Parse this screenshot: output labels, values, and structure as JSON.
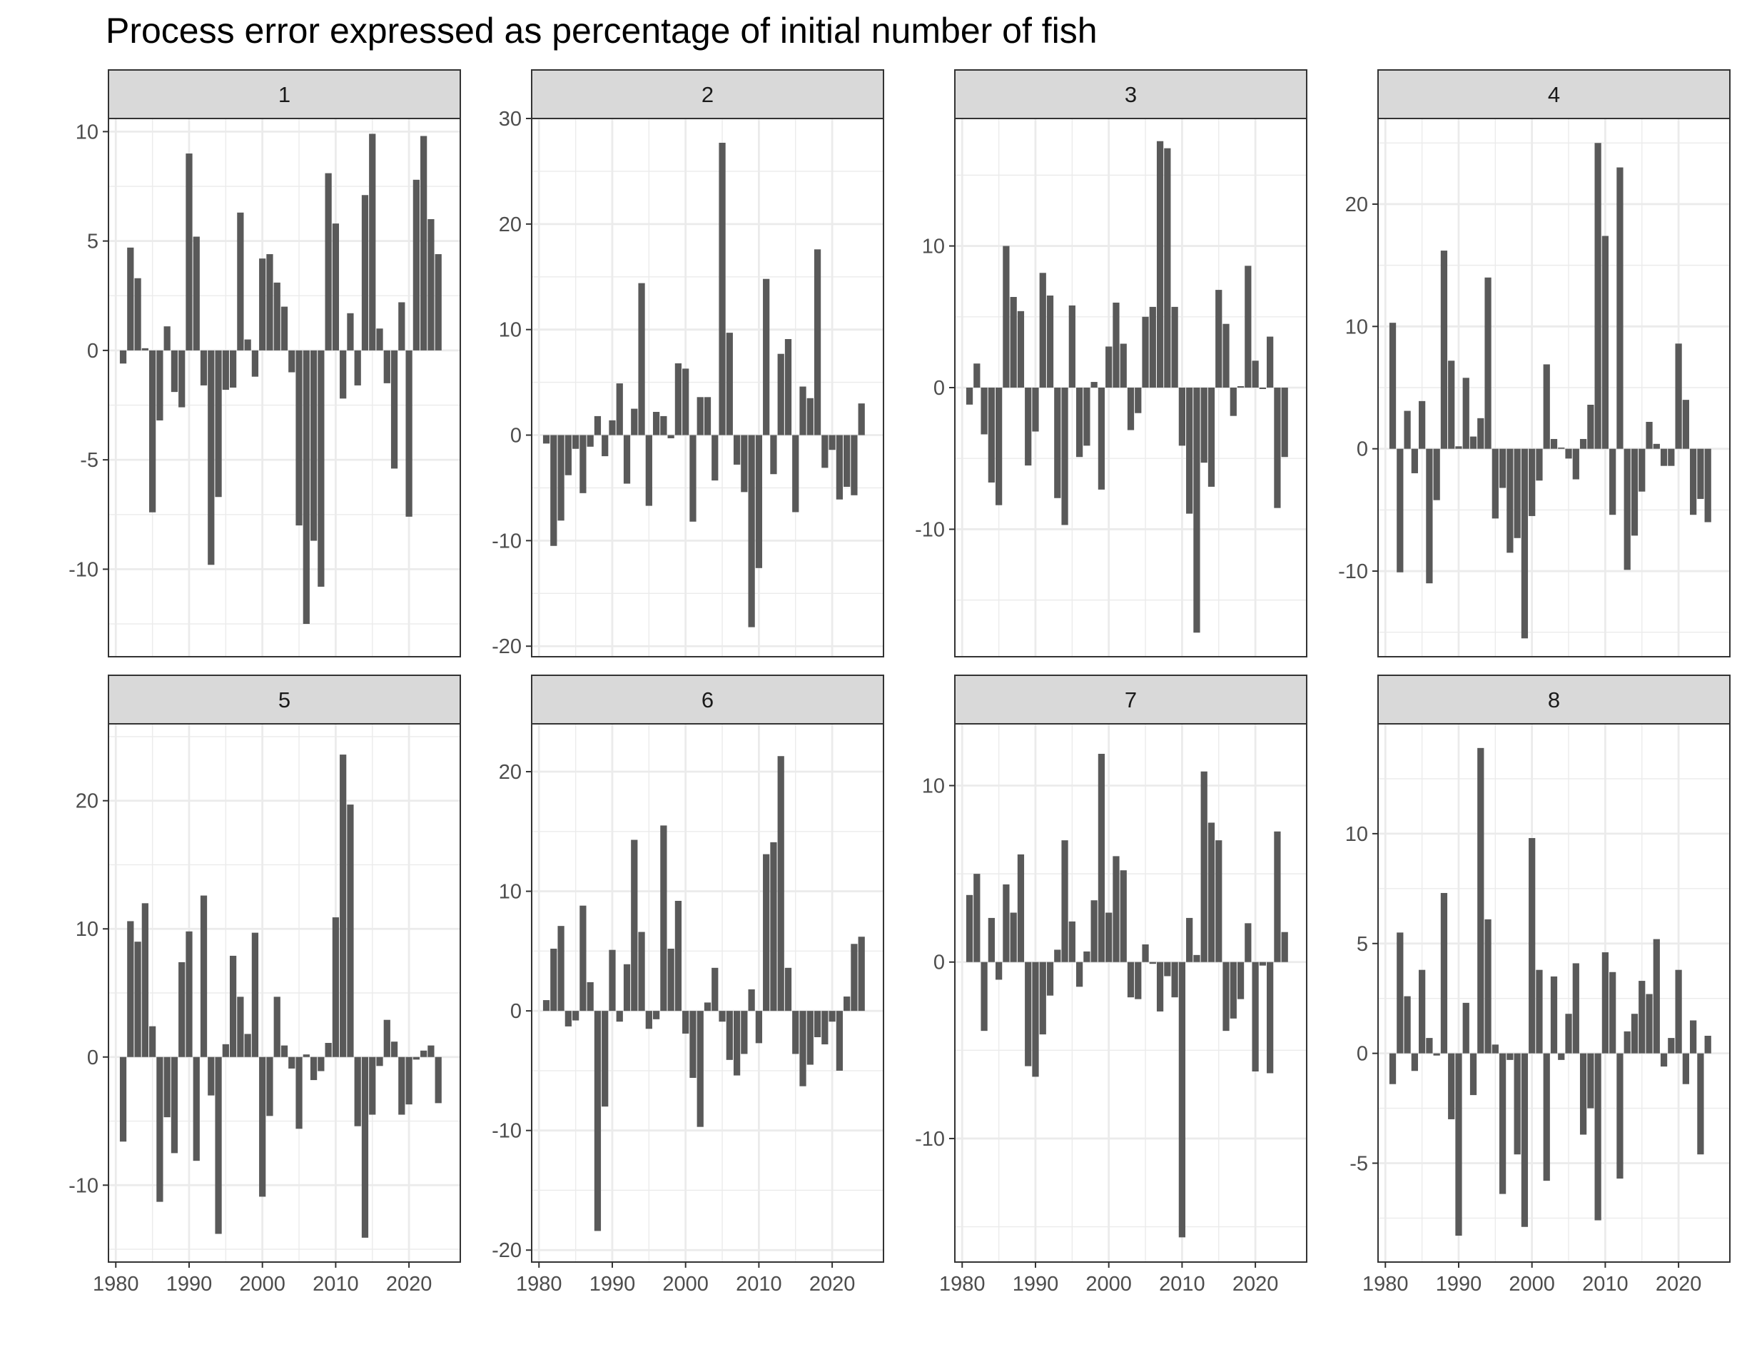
{
  "chart_data": {
    "type": "bar",
    "title": "Process error expressed as percentage of initial number of fish",
    "xlabel": "",
    "ylabel": "",
    "layout": "facet-grid-2x4",
    "grid": true,
    "bar_color": "#595959",
    "strip_fill": "#d9d9d9",
    "grid_color": "#ebebeb",
    "x_start": 1981,
    "x_ticks": [
      1980,
      1990,
      2000,
      2010,
      2020
    ],
    "xlim": [
      1979,
      2027
    ],
    "panels": [
      {
        "label": "1",
        "ylim": [
          -14,
          10.6
        ],
        "y_ticks": [
          -10,
          -5,
          0,
          5,
          10
        ],
        "values": [
          -0.6,
          4.7,
          3.3,
          0.1,
          -7.4,
          -3.2,
          1.1,
          -1.9,
          -2.6,
          9.0,
          5.2,
          -1.6,
          -9.8,
          -6.7,
          -1.8,
          -1.7,
          6.3,
          0.5,
          -1.2,
          4.2,
          4.4,
          3.1,
          2.0,
          -1.0,
          -8.0,
          -12.5,
          -8.7,
          -10.8,
          8.1,
          5.8,
          -2.2,
          1.7,
          -1.6,
          7.1,
          9.9,
          1.0,
          -1.5,
          -5.4,
          2.2,
          -7.6,
          7.8,
          9.8,
          6.0,
          4.4
        ]
      },
      {
        "label": "2",
        "ylim": [
          -21,
          30
        ],
        "y_ticks": [
          -20,
          -10,
          0,
          10,
          20,
          30
        ],
        "values": [
          -0.8,
          -10.5,
          -8.1,
          -3.8,
          -1.3,
          -5.5,
          -1.1,
          1.8,
          -2.0,
          1.4,
          4.9,
          -4.6,
          2.5,
          14.4,
          -6.7,
          2.2,
          1.8,
          -0.3,
          6.8,
          6.3,
          -8.2,
          3.6,
          3.6,
          -4.3,
          27.7,
          9.7,
          -2.8,
          -5.4,
          -18.2,
          -12.6,
          14.8,
          -3.7,
          7.7,
          9.1,
          -7.3,
          4.6,
          3.5,
          17.6,
          -3.1,
          -1.4,
          -6.1,
          -4.9,
          -5.7,
          3.0
        ]
      },
      {
        "label": "3",
        "ylim": [
          -19,
          19
        ],
        "y_ticks": [
          -10,
          0,
          10
        ],
        "values": [
          -1.2,
          1.7,
          -3.3,
          -6.7,
          -8.3,
          10.0,
          6.4,
          5.4,
          -5.5,
          -3.1,
          8.1,
          6.5,
          -7.8,
          -9.7,
          5.8,
          -4.9,
          -4.1,
          0.4,
          -7.2,
          2.9,
          6.0,
          3.1,
          -3.0,
          -1.8,
          5.0,
          5.7,
          17.4,
          16.9,
          5.7,
          -4.1,
          -8.9,
          -17.3,
          -5.3,
          -7.0,
          6.9,
          4.5,
          -2.0,
          0.1,
          8.6,
          1.9,
          -0.1,
          3.6,
          -8.5,
          -4.9
        ]
      },
      {
        "label": "4",
        "ylim": [
          -17,
          27
        ],
        "y_ticks": [
          -10,
          0,
          10,
          20
        ],
        "values": [
          10.3,
          -10.1,
          3.1,
          -2.0,
          3.9,
          -11.0,
          -4.2,
          16.2,
          7.2,
          0.2,
          5.8,
          1.0,
          2.5,
          14.0,
          -5.7,
          -3.2,
          -8.5,
          -7.3,
          -15.5,
          -5.5,
          -2.6,
          6.9,
          0.8,
          0.1,
          -0.8,
          -2.5,
          0.8,
          3.6,
          25.0,
          17.4,
          -5.4,
          23.0,
          -9.9,
          -7.1,
          -3.5,
          2.2,
          0.4,
          -1.4,
          -1.4,
          8.6,
          4.0,
          -5.4,
          -4.1,
          -6.0
        ]
      },
      {
        "label": "5",
        "ylim": [
          -16,
          26
        ],
        "y_ticks": [
          -10,
          0,
          10,
          20
        ],
        "values": [
          -6.6,
          10.6,
          9.0,
          12.0,
          2.4,
          -11.3,
          -4.7,
          -7.5,
          7.4,
          9.8,
          -8.1,
          12.6,
          -3.0,
          -13.8,
          1.0,
          7.9,
          4.7,
          1.8,
          9.7,
          -10.9,
          -4.6,
          4.7,
          0.9,
          -0.9,
          -5.6,
          0.2,
          -1.8,
          -1.1,
          1.1,
          10.9,
          23.6,
          19.7,
          -5.4,
          -14.1,
          -4.5,
          -0.7,
          2.9,
          1.2,
          -4.5,
          -3.7,
          -0.2,
          0.5,
          0.9,
          -3.6
        ]
      },
      {
        "label": "6",
        "ylim": [
          -21,
          24
        ],
        "y_ticks": [
          -20,
          -10,
          0,
          10,
          20
        ],
        "values": [
          0.9,
          5.2,
          7.1,
          -1.3,
          -0.8,
          8.8,
          2.4,
          -18.4,
          -8.0,
          5.1,
          -0.9,
          3.9,
          14.3,
          6.6,
          -1.5,
          -0.7,
          15.5,
          5.2,
          9.2,
          -1.9,
          -5.6,
          -9.7,
          0.7,
          3.6,
          -0.9,
          -4.1,
          -5.4,
          -3.6,
          1.8,
          -2.7,
          13.1,
          14.1,
          21.3,
          3.6,
          -3.6,
          -6.3,
          -4.5,
          -2.2,
          -2.8,
          -0.9,
          -5.0,
          1.2,
          5.6,
          6.2
        ]
      },
      {
        "label": "7",
        "ylim": [
          -17,
          13.5
        ],
        "y_ticks": [
          -10,
          0,
          10
        ],
        "values": [
          3.8,
          5.0,
          -3.9,
          2.5,
          -1.0,
          4.4,
          2.8,
          6.1,
          -5.9,
          -6.5,
          -4.1,
          -1.9,
          0.7,
          6.9,
          2.3,
          -1.4,
          0.6,
          3.5,
          11.8,
          2.8,
          6.0,
          5.2,
          -2.0,
          -2.1,
          1.0,
          -0.1,
          -2.8,
          -0.8,
          -2.0,
          -15.6,
          2.5,
          0.4,
          10.8,
          7.9,
          6.9,
          -3.9,
          -3.2,
          -2.1,
          2.2,
          -6.2,
          -0.2,
          -6.3,
          7.4,
          1.7
        ]
      },
      {
        "label": "8",
        "ylim": [
          -9.5,
          15
        ],
        "y_ticks": [
          -5,
          0,
          5,
          10
        ],
        "values": [
          -1.4,
          5.5,
          2.6,
          -0.8,
          3.8,
          0.7,
          -0.1,
          7.3,
          -3.0,
          -8.3,
          2.3,
          -1.9,
          13.9,
          6.1,
          0.4,
          -6.4,
          -0.3,
          -4.6,
          -7.9,
          9.8,
          3.8,
          -5.8,
          3.5,
          -0.3,
          1.8,
          4.1,
          -3.7,
          -2.5,
          -7.6,
          4.6,
          3.7,
          -5.7,
          1.0,
          1.8,
          3.3,
          2.7,
          5.2,
          -0.6,
          0.7,
          3.8,
          -1.4,
          1.5,
          -4.6,
          0.8
        ]
      }
    ]
  }
}
